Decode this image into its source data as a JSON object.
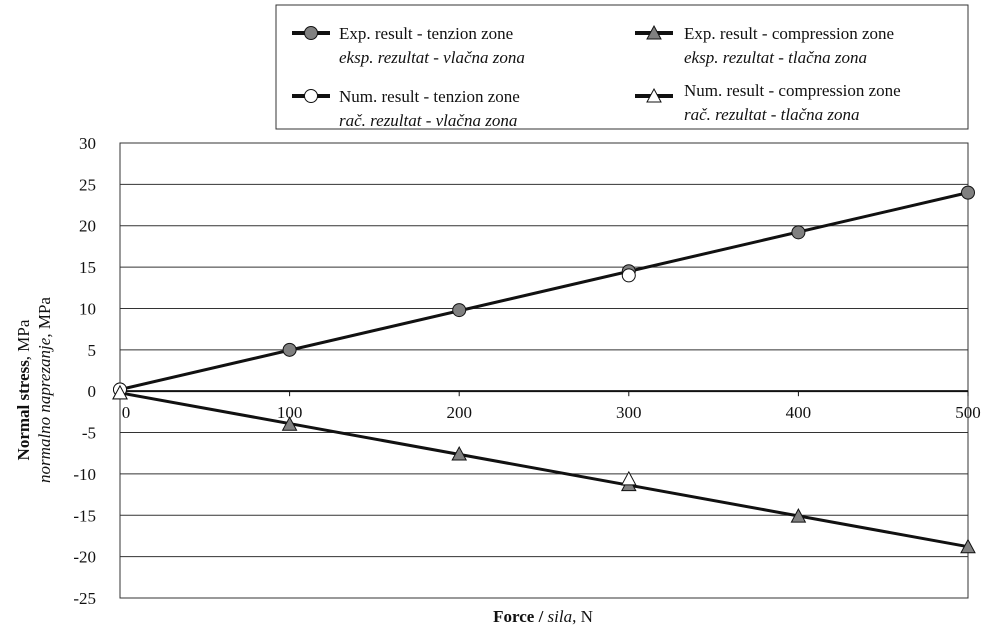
{
  "chart_data": {
    "type": "line",
    "xlabel": {
      "bold": "Force",
      "sep": " / ",
      "italic": "sila",
      "unit": ", N"
    },
    "ylabel_line1": {
      "bold": "Normal stress",
      "unit": ", MPa"
    },
    "ylabel_line2": {
      "italic": "normalno naprezanje",
      "unit": ", MPa"
    },
    "xlim": [
      0,
      500
    ],
    "ylim": [
      -25,
      30
    ],
    "x_ticks": [
      "0",
      "100",
      "200",
      "300",
      "400",
      "500"
    ],
    "y_ticks": [
      "30",
      "25",
      "20",
      "15",
      "10",
      "5",
      "0",
      "-5",
      "-10",
      "-15",
      "-20",
      "-25"
    ],
    "grid": "horizontal",
    "legend_position": "top",
    "series": [
      {
        "name": "Exp. result - tenzion zone",
        "name_local": "eksp. rezultat - vlačna zona",
        "marker": "circle",
        "fill": "#808080",
        "x": [
          0,
          100,
          200,
          300,
          400,
          500
        ],
        "y": [
          0.2,
          5.0,
          9.8,
          14.5,
          19.2,
          24.0
        ]
      },
      {
        "name": "Exp. result - compression zone",
        "name_local": "eksp. rezultat - tlačna zona",
        "marker": "triangle",
        "fill": "#808080",
        "x": [
          0,
          100,
          200,
          300,
          400,
          500
        ],
        "y": [
          -0.2,
          -4.0,
          -7.6,
          -11.3,
          -15.1,
          -18.8
        ]
      },
      {
        "name": "Num. result - tenzion zone",
        "name_local": "rač. rezultat - vlačna zona",
        "marker": "circle",
        "fill": "#ffffff",
        "x": [
          0,
          300
        ],
        "y": [
          0.2,
          14.0
        ]
      },
      {
        "name": "Num. result - compression zone",
        "name_local": "rač. rezultat - tlačna zona",
        "marker": "triangle",
        "fill": "#ffffff",
        "x": [
          0,
          300
        ],
        "y": [
          -0.2,
          -10.6
        ]
      }
    ],
    "trend_lines": [
      {
        "x": [
          0,
          500
        ],
        "y": [
          0.2,
          24.0
        ]
      },
      {
        "x": [
          0,
          500
        ],
        "y": [
          -0.2,
          -18.8
        ]
      }
    ]
  }
}
